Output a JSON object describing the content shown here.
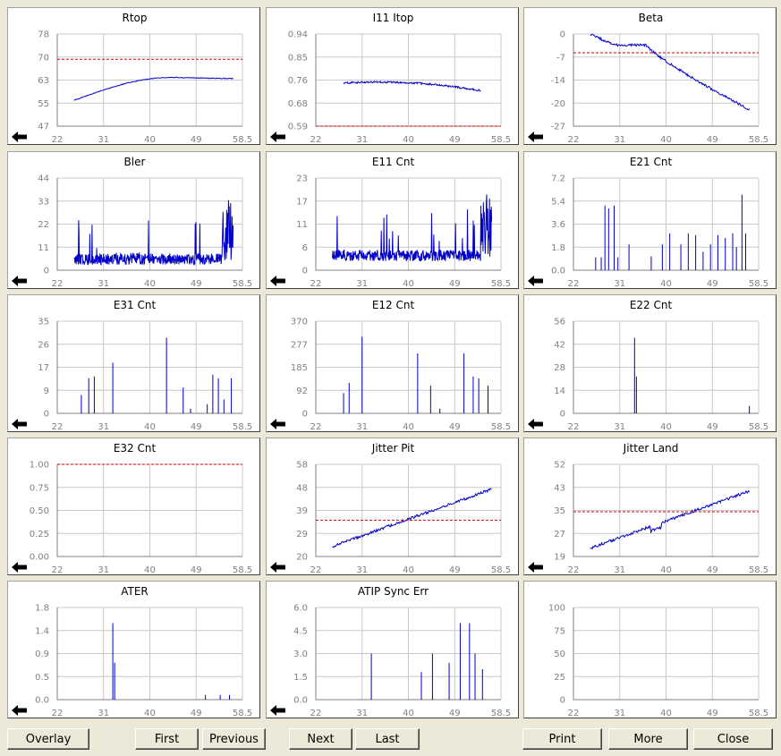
{
  "accent_color": "#0000c8",
  "threshold_color": "#d00000",
  "x_ticks": [
    "22",
    "31",
    "40",
    "49",
    "58.5"
  ],
  "panels": [
    {
      "title": "Rtop",
      "yticks": [
        "78",
        "70",
        "63",
        "55",
        "47"
      ],
      "series": "rtop",
      "threshold": 69.5,
      "ymin": 47,
      "ymax": 78
    },
    {
      "title": "I11 Itop",
      "yticks": [
        "0.94",
        "0.85",
        "0.76",
        "0.68",
        "0.59"
      ],
      "series": "itop",
      "threshold": 0.59,
      "ymin": 0.59,
      "ymax": 0.94
    },
    {
      "title": "Beta",
      "yticks": [
        "0",
        "-7",
        "-14",
        "-20",
        "-27"
      ],
      "series": "beta",
      "threshold": -5.5,
      "ymin": -27,
      "ymax": 0
    },
    {
      "title": "Bler",
      "yticks": [
        "44",
        "33",
        "22",
        "11",
        "0"
      ],
      "series": "bler",
      "ymin": 0,
      "ymax": 44
    },
    {
      "title": "E11 Cnt",
      "yticks": [
        "23",
        "17",
        "11",
        "6",
        "0"
      ],
      "series": "e11",
      "ymin": 0,
      "ymax": 23
    },
    {
      "title": "E21 Cnt",
      "yticks": [
        "7.2",
        "5.4",
        "3.6",
        "1.8",
        "0.0"
      ],
      "series": "e21",
      "ymin": 0,
      "ymax": 7.2
    },
    {
      "title": "E31 Cnt",
      "yticks": [
        "35",
        "26",
        "17",
        "9",
        "0"
      ],
      "series": "e31",
      "ymin": 0,
      "ymax": 35
    },
    {
      "title": "E12 Cnt",
      "yticks": [
        "370",
        "277",
        "185",
        "92",
        "0"
      ],
      "series": "e12",
      "ymin": 0,
      "ymax": 370
    },
    {
      "title": "E22 Cnt",
      "yticks": [
        "56",
        "42",
        "28",
        "14",
        "0"
      ],
      "series": "e22",
      "ymin": 0,
      "ymax": 56
    },
    {
      "title": "E32 Cnt",
      "yticks": [
        "1.00",
        "0.75",
        "0.50",
        "0.25",
        "0.00"
      ],
      "series": "none",
      "threshold": 1.0,
      "ymin": 0,
      "ymax": 1
    },
    {
      "title": "Jitter Pit",
      "yticks": [
        "58",
        "48",
        "39",
        "29",
        "20"
      ],
      "series": "jpit",
      "threshold": 35,
      "ymin": 20,
      "ymax": 58
    },
    {
      "title": "Jitter Land",
      "yticks": [
        "52",
        "43",
        "35",
        "27",
        "19"
      ],
      "series": "jland",
      "threshold": 35,
      "ymin": 19,
      "ymax": 52
    },
    {
      "title": "ATER",
      "yticks": [
        "1.8",
        "1.4",
        "0.9",
        "0.5",
        "0.0"
      ],
      "series": "ater",
      "ymin": 0,
      "ymax": 1.8
    },
    {
      "title": "ATIP Sync Err",
      "yticks": [
        "6.0",
        "4.5",
        "3.0",
        "1.5",
        "0.0"
      ],
      "series": "atip",
      "ymin": 0,
      "ymax": 6
    },
    {
      "title": "",
      "yticks": [
        "100",
        "75",
        "50",
        "25",
        "0"
      ],
      "series": "none",
      "ymin": 0,
      "ymax": 100
    }
  ],
  "buttons": {
    "overlay": "Overlay",
    "first": "First",
    "previous": "Previous",
    "next": "Next",
    "last": "Last",
    "print": "Print",
    "more": "More",
    "close": "Close"
  }
}
